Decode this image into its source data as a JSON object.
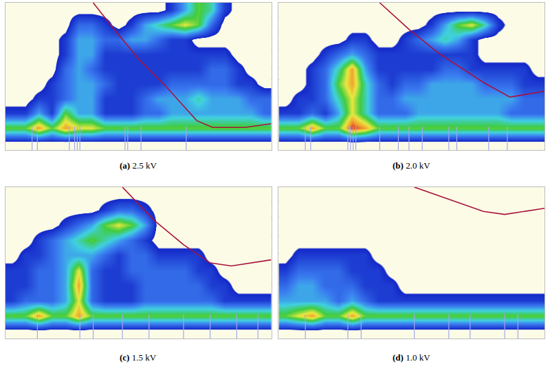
{
  "chart_data": [
    {
      "type": "heatmap",
      "label": "(a)",
      "title": "2.5 kV",
      "xlim": [
        0,
        100
      ],
      "ylim": [
        0,
        50
      ],
      "xticks": [
        27,
        51,
        68
      ],
      "yticks": [
        18,
        24,
        28,
        34,
        40,
        45
      ],
      "grid": true,
      "tick_labels": false,
      "zlim": [
        0,
        8
      ],
      "z": [
        [
          0,
          0,
          0,
          0,
          0,
          0,
          0,
          0,
          0,
          0,
          0,
          0,
          0,
          0,
          0,
          0,
          0,
          0,
          0,
          0
        ],
        [
          5,
          5,
          7,
          5,
          7,
          6,
          6,
          5,
          5,
          5,
          5,
          5,
          5,
          5,
          5,
          5,
          5,
          5,
          5,
          5
        ],
        [
          1,
          1,
          3,
          1,
          5,
          3,
          3,
          1,
          1,
          1,
          2,
          2,
          3,
          3,
          3,
          3,
          3,
          3,
          3,
          2
        ],
        [
          0,
          0,
          1,
          1,
          2,
          3,
          3,
          1,
          1,
          1,
          2,
          3,
          3,
          3,
          4,
          3,
          3,
          3,
          2,
          2
        ],
        [
          0,
          0,
          0,
          1,
          2,
          3,
          3,
          2,
          1,
          1,
          1,
          1,
          2,
          2,
          2,
          2,
          2,
          1,
          1,
          0
        ],
        [
          0,
          0,
          0,
          0,
          2,
          3,
          2,
          1,
          1,
          1,
          1,
          1,
          1,
          1,
          1,
          2,
          2,
          1,
          0,
          0
        ],
        [
          0,
          0,
          0,
          0,
          1,
          3,
          3,
          1,
          1,
          1,
          1,
          1,
          1,
          1,
          1,
          1,
          1,
          0,
          0,
          0
        ],
        [
          0,
          0,
          0,
          0,
          1,
          3,
          3,
          2,
          2,
          3,
          3,
          2,
          1,
          1,
          0,
          0,
          0,
          0,
          0,
          0
        ],
        [
          0,
          0,
          0,
          0,
          0,
          2,
          2,
          1,
          0,
          1,
          3,
          4,
          5,
          6,
          5,
          2,
          0,
          0,
          0,
          0
        ],
        [
          0,
          0,
          0,
          0,
          0,
          0,
          0,
          0,
          0,
          0,
          0,
          0,
          1,
          3,
          5,
          4,
          1,
          0,
          0,
          0
        ]
      ],
      "series": [
        {
          "type": "line",
          "color": "#a8123e",
          "x": [
            33,
            40,
            50,
            60,
            67,
            72,
            78,
            90,
            100
          ],
          "values": [
            50,
            42,
            31,
            22,
            15,
            10,
            7.7,
            7.7,
            9
          ]
        },
        {
          "type": "spike",
          "color": "#a0a8f0",
          "x": [
            10,
            12,
            24,
            26,
            27,
            28,
            45,
            46,
            51,
            68
          ],
          "values": [
            8,
            8,
            8,
            8,
            8,
            8,
            8,
            8,
            8,
            8
          ]
        }
      ]
    },
    {
      "type": "heatmap",
      "label": "(b)",
      "title": "2.0 kV",
      "xlim": [
        0,
        100
      ],
      "ylim": [
        0,
        50
      ],
      "xticks": [
        27,
        50,
        77
      ],
      "yticks": [
        18,
        24,
        28,
        34,
        40,
        45
      ],
      "grid": true,
      "tick_labels": false,
      "zlim": [
        0,
        8
      ],
      "z": [
        [
          0,
          0,
          0,
          0,
          0,
          0,
          0,
          0,
          0,
          0,
          0,
          0,
          0,
          0,
          0,
          0,
          0,
          0,
          0,
          0
        ],
        [
          5,
          5,
          7,
          5,
          5,
          8,
          7,
          5,
          5,
          5,
          5,
          5,
          5,
          5,
          5,
          5,
          5,
          5,
          5,
          5
        ],
        [
          1,
          1,
          2,
          1,
          3,
          6,
          4,
          2,
          2,
          2,
          3,
          3,
          3,
          3,
          3,
          3,
          3,
          2,
          2,
          2
        ],
        [
          0,
          1,
          1,
          2,
          4,
          6,
          4,
          2,
          2,
          3,
          3,
          3,
          3,
          3,
          3,
          3,
          3,
          3,
          2,
          2
        ],
        [
          0,
          0,
          1,
          2,
          5,
          7,
          4,
          2,
          1,
          2,
          2,
          3,
          3,
          3,
          3,
          2,
          2,
          2,
          1,
          1
        ],
        [
          0,
          0,
          1,
          2,
          4,
          7,
          3,
          1,
          1,
          1,
          1,
          1,
          2,
          2,
          1,
          1,
          1,
          1,
          1,
          0
        ],
        [
          0,
          0,
          0,
          1,
          2,
          3,
          2,
          1,
          1,
          1,
          1,
          1,
          1,
          1,
          1,
          0,
          0,
          0,
          0,
          0
        ],
        [
          0,
          0,
          0,
          0,
          0,
          1,
          1,
          0,
          0,
          1,
          2,
          3,
          4,
          3,
          1,
          0,
          0,
          0,
          0,
          0
        ],
        [
          0,
          0,
          0,
          0,
          0,
          0,
          0,
          0,
          0,
          0,
          0,
          1,
          3,
          5,
          6,
          4,
          1,
          0,
          0,
          0
        ],
        [
          0,
          0,
          0,
          0,
          0,
          0,
          0,
          0,
          0,
          0,
          0,
          0,
          0,
          0,
          0,
          0,
          0,
          0,
          0,
          0
        ]
      ],
      "series": [
        {
          "type": "line",
          "color": "#a8123e",
          "x": [
            38,
            49,
            60,
            70,
            77,
            87,
            100
          ],
          "values": [
            50,
            41,
            33,
            27,
            23,
            18,
            20
          ]
        },
        {
          "type": "spike",
          "color": "#a0a8f0",
          "x": [
            10,
            12,
            26,
            27,
            28,
            29,
            38,
            45,
            49,
            54,
            64,
            67,
            79,
            86
          ],
          "values": [
            8,
            8,
            8,
            8,
            8,
            8,
            8,
            8,
            8,
            8,
            8,
            8,
            8,
            8
          ]
        }
      ]
    },
    {
      "type": "heatmap",
      "label": "(c)",
      "title": "1.5 kV",
      "xlim": [
        0,
        100
      ],
      "ylim": [
        0,
        50
      ],
      "xticks": [
        23,
        53,
        78
      ],
      "yticks": [
        18,
        24,
        28,
        34,
        40,
        45
      ],
      "grid": true,
      "tick_labels": false,
      "zlim": [
        0,
        8
      ],
      "z": [
        [
          0,
          0,
          0,
          0,
          0,
          0,
          0,
          0,
          0,
          0,
          0,
          0,
          0,
          0,
          0,
          0,
          0,
          0,
          0,
          0
        ],
        [
          5,
          5,
          7,
          5,
          5,
          7,
          5,
          5,
          5,
          5,
          5,
          5,
          5,
          5,
          5,
          5,
          5,
          5,
          5,
          5
        ],
        [
          1,
          2,
          2,
          2,
          3,
          6,
          2,
          1,
          1,
          1,
          2,
          2,
          2,
          2,
          2,
          2,
          1,
          1,
          1,
          1
        ],
        [
          1,
          1,
          2,
          2,
          3,
          7,
          2,
          1,
          1,
          1,
          2,
          2,
          2,
          2,
          2,
          1,
          1,
          0,
          0,
          0
        ],
        [
          1,
          1,
          2,
          2,
          3,
          6,
          2,
          1,
          1,
          2,
          2,
          2,
          2,
          2,
          1,
          1,
          0,
          0,
          0,
          0
        ],
        [
          0,
          1,
          1,
          2,
          3,
          3,
          3,
          2,
          1,
          2,
          2,
          1,
          1,
          1,
          1,
          0,
          0,
          0,
          0,
          0
        ],
        [
          0,
          0,
          1,
          2,
          3,
          4,
          5,
          4,
          3,
          2,
          1,
          0,
          0,
          0,
          0,
          0,
          0,
          0,
          0,
          0
        ],
        [
          0,
          0,
          0,
          0,
          1,
          2,
          3,
          5,
          6,
          5,
          3,
          0,
          0,
          0,
          0,
          0,
          0,
          0,
          0,
          0
        ],
        [
          0,
          0,
          0,
          0,
          0,
          0,
          0,
          1,
          2,
          2,
          1,
          0,
          0,
          0,
          0,
          0,
          0,
          0,
          0,
          0
        ],
        [
          0,
          0,
          0,
          0,
          0,
          0,
          0,
          0,
          0,
          0,
          0,
          0,
          0,
          0,
          0,
          0,
          0,
          0,
          0,
          0
        ]
      ],
      "series": [
        {
          "type": "line",
          "color": "#a8123e",
          "x": [
            44,
            56,
            67,
            77,
            85,
            100
          ],
          "values": [
            50,
            39,
            31,
            25,
            24,
            26
          ]
        },
        {
          "type": "spike",
          "color": "#a0a8f0",
          "x": [
            12,
            28,
            33,
            44,
            54,
            67,
            77,
            87,
            95
          ],
          "values": [
            8,
            8,
            8,
            8,
            8,
            8,
            8,
            8,
            8
          ]
        }
      ]
    },
    {
      "type": "heatmap",
      "label": "(d)",
      "title": "1.0 kV",
      "xlim": [
        0,
        100
      ],
      "ylim": [
        0,
        50
      ],
      "xticks": [
        28,
        53,
        79
      ],
      "yticks": [
        18,
        24,
        28,
        34,
        40,
        45
      ],
      "grid": true,
      "tick_labels": false,
      "zlim": [
        0,
        8
      ],
      "z": [
        [
          0,
          0,
          0,
          0,
          0,
          0,
          0,
          0,
          0,
          0,
          0,
          0,
          0,
          0,
          0,
          0,
          0,
          0,
          0,
          0
        ],
        [
          5,
          6,
          7,
          5,
          5,
          7,
          5,
          5,
          5,
          5,
          5,
          5,
          5,
          5,
          5,
          5,
          5,
          5,
          5,
          5
        ],
        [
          3,
          3,
          3,
          3,
          2,
          3,
          2,
          1,
          1,
          1,
          1,
          1,
          1,
          1,
          1,
          1,
          1,
          1,
          1,
          1
        ],
        [
          2,
          3,
          3,
          2,
          2,
          2,
          1,
          1,
          1,
          0,
          0,
          0,
          0,
          0,
          0,
          0,
          0,
          0,
          0,
          0
        ],
        [
          1,
          2,
          2,
          2,
          2,
          1,
          1,
          1,
          0,
          0,
          0,
          0,
          0,
          0,
          0,
          0,
          0,
          0,
          0,
          0
        ],
        [
          0,
          1,
          1,
          1,
          1,
          1,
          1,
          0,
          0,
          0,
          0,
          0,
          0,
          0,
          0,
          0,
          0,
          0,
          0,
          0
        ],
        [
          0,
          0,
          0,
          0,
          0,
          0,
          0,
          0,
          0,
          0,
          0,
          0,
          0,
          0,
          0,
          0,
          0,
          0,
          0,
          0
        ],
        [
          0,
          0,
          0,
          0,
          0,
          0,
          0,
          0,
          0,
          0,
          0,
          0,
          0,
          0,
          0,
          0,
          0,
          0,
          0,
          0
        ],
        [
          0,
          0,
          0,
          0,
          0,
          0,
          0,
          0,
          0,
          0,
          0,
          0,
          0,
          0,
          0,
          0,
          0,
          0,
          0,
          0
        ],
        [
          0,
          0,
          0,
          0,
          0,
          0,
          0,
          0,
          0,
          0,
          0,
          0,
          0,
          0,
          0,
          0,
          0,
          0,
          0,
          0
        ]
      ],
      "series": [
        {
          "type": "line",
          "color": "#a8123e",
          "x": [
            51,
            67,
            77,
            85,
            100
          ],
          "values": [
            50,
            45,
            42,
            41,
            43
          ]
        },
        {
          "type": "spike",
          "color": "#a0a8f0",
          "x": [
            10,
            26,
            31,
            51,
            64,
            72,
            85,
            90
          ],
          "values": [
            8,
            8,
            8,
            8,
            8,
            8,
            8,
            8
          ]
        }
      ]
    }
  ]
}
